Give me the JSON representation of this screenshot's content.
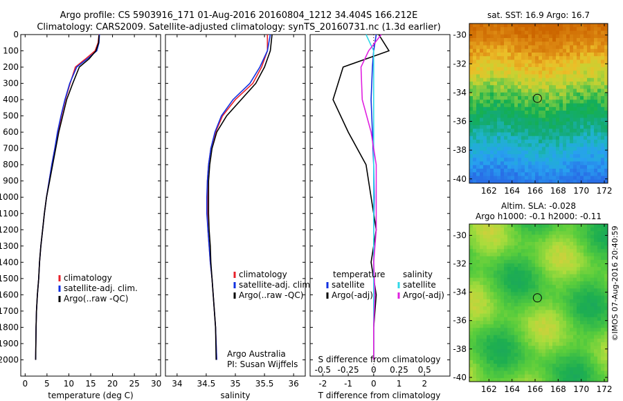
{
  "header": {
    "title_line1": "Argo profile: CS 5903916_171 01-Aug-2016 20160804_1212 34.404S 166.212E",
    "title_line2": "Climatology: CARS2009. Satellite-adjusted climatology: synTS_20160731.nc (1.3d earlier)"
  },
  "colors": {
    "climatology": "#e8202a",
    "satellite": "#1030e0",
    "argo": "#000000",
    "sal_satellite": "#30d8e8",
    "sal_argo": "#e020e0"
  },
  "chart_data": [
    {
      "id": "temperature",
      "type": "line",
      "xlabel": "temperature (deg C)",
      "ylabel": "",
      "xlim": [
        -1,
        31
      ],
      "ylim": [
        2100,
        0
      ],
      "xticks": [
        0,
        5,
        10,
        15,
        20,
        25,
        30
      ],
      "yticks": [
        0,
        100,
        200,
        300,
        400,
        500,
        600,
        700,
        800,
        900,
        1000,
        1100,
        1200,
        1300,
        1400,
        1500,
        1600,
        1700,
        1800,
        1900,
        2000
      ],
      "legend": [
        "climatology",
        "satellite-adj. clim.",
        "Argo(..raw -QC)"
      ],
      "series": [
        {
          "name": "climatology",
          "color": "#e8202a",
          "x": [
            16.9,
            16.7,
            16.0,
            13.8,
            11.5,
            10.3,
            9.2,
            8.3,
            7.5,
            6.8,
            6.1,
            5.5,
            4.9,
            4.4,
            4.0,
            3.6,
            3.3,
            3.1,
            2.8,
            2.6,
            2.5,
            2.4
          ],
          "y": [
            0,
            50,
            100,
            150,
            200,
            300,
            400,
            500,
            600,
            700,
            800,
            900,
            1000,
            1100,
            1200,
            1300,
            1400,
            1500,
            1600,
            1700,
            1800,
            2000
          ]
        },
        {
          "name": "satellite-adj. clim.",
          "color": "#1030e0",
          "x": [
            17.0,
            16.9,
            16.4,
            14.2,
            11.8,
            10.2,
            9.1,
            8.2,
            7.4,
            6.8,
            6.1,
            5.5,
            4.9,
            4.4,
            4.0,
            3.6,
            3.3,
            3.1,
            2.8,
            2.6,
            2.5,
            2.4
          ],
          "y": [
            0,
            50,
            100,
            150,
            200,
            300,
            400,
            500,
            600,
            700,
            800,
            900,
            1000,
            1100,
            1200,
            1300,
            1400,
            1500,
            1600,
            1700,
            1800,
            2000
          ]
        },
        {
          "name": "Argo(..raw -QC)",
          "color": "#000000",
          "x": [
            16.9,
            16.8,
            16.2,
            14.6,
            12.4,
            10.9,
            9.5,
            8.6,
            7.7,
            7.0,
            6.3,
            5.6,
            4.9,
            4.4,
            4.0,
            3.6,
            3.3,
            3.1,
            2.8,
            2.6,
            2.5,
            2.4
          ],
          "y": [
            5,
            50,
            100,
            150,
            200,
            300,
            400,
            500,
            600,
            700,
            800,
            900,
            1000,
            1100,
            1200,
            1300,
            1400,
            1500,
            1600,
            1700,
            1800,
            2000
          ]
        }
      ]
    },
    {
      "id": "salinity",
      "type": "line",
      "xlabel": "salinity",
      "ylabel": "",
      "xlim": [
        33.8,
        36.2
      ],
      "ylim": [
        2100,
        0
      ],
      "xticks": [
        34,
        34.5,
        35,
        35.5,
        36
      ],
      "legend": [
        "climatology",
        "satellite-adj. clim.",
        "Argo(..raw -QC)"
      ],
      "series": [
        {
          "name": "climatology",
          "color": "#e8202a",
          "x": [
            35.55,
            35.55,
            35.45,
            35.3,
            35.0,
            34.78,
            34.66,
            34.58,
            34.54,
            34.52,
            34.52,
            34.52,
            34.53,
            34.55,
            34.57,
            34.6,
            34.62,
            34.64,
            34.66,
            34.68
          ],
          "y": [
            0,
            100,
            200,
            300,
            400,
            500,
            600,
            700,
            800,
            900,
            1000,
            1100,
            1200,
            1300,
            1400,
            1500,
            1600,
            1700,
            1800,
            2000
          ]
        },
        {
          "name": "satellite-adj. clim.",
          "color": "#1030e0",
          "x": [
            35.6,
            35.55,
            35.42,
            35.25,
            34.96,
            34.76,
            34.65,
            34.58,
            34.54,
            34.52,
            34.51,
            34.51,
            34.53,
            34.55,
            34.57,
            34.6,
            34.62,
            34.64,
            34.66,
            34.68
          ],
          "y": [
            0,
            100,
            200,
            300,
            400,
            500,
            600,
            700,
            800,
            900,
            1000,
            1100,
            1200,
            1300,
            1400,
            1500,
            1600,
            1700,
            1800,
            2000
          ]
        },
        {
          "name": "Argo(..raw -QC)",
          "color": "#000000",
          "x": [
            35.63,
            35.6,
            35.5,
            35.35,
            35.1,
            34.85,
            34.68,
            34.6,
            34.56,
            34.54,
            34.54,
            34.54,
            34.55,
            34.57,
            34.58,
            34.6,
            34.62,
            34.64,
            34.66,
            34.67
          ],
          "y": [
            0,
            100,
            200,
            300,
            400,
            500,
            600,
            700,
            800,
            900,
            1000,
            1100,
            1200,
            1300,
            1400,
            1500,
            1600,
            1700,
            1800,
            2000
          ]
        }
      ]
    },
    {
      "id": "difference",
      "type": "line",
      "xlabel": "T difference from climatology",
      "x2label": "S difference from climatology",
      "xlim": [
        -2.5,
        3
      ],
      "ylim": [
        2100,
        0
      ],
      "xticks": [
        -2,
        -1,
        0,
        1,
        2
      ],
      "x2ticks": [
        "-0.5",
        "-0.25",
        "0",
        "0.25",
        "0.5"
      ],
      "legend": {
        "temperature": "temperature",
        "salinity": "salinity",
        "items": [
          "satellite",
          "Argo(-adj)",
          "satellite",
          "Argo(-adj)"
        ]
      },
      "series": [
        {
          "name": "T satellite",
          "color": "#1030e0",
          "x": [
            0.1,
            0.0,
            -0.05,
            -0.1,
            -0.05,
            0,
            0.02,
            0.0,
            0.0,
            0.0,
            0.0,
            0.0
          ],
          "y": [
            0,
            100,
            200,
            400,
            600,
            800,
            1000,
            1200,
            1400,
            1600,
            1800,
            2000
          ]
        },
        {
          "name": "T Argo(-adj)",
          "color": "#000000",
          "x": [
            0.2,
            0.6,
            -1.2,
            -1.6,
            -1.0,
            -0.3,
            -0.1,
            0.1,
            -0.1,
            0.1,
            0.0,
            0.0
          ],
          "y": [
            0,
            100,
            200,
            400,
            600,
            800,
            1000,
            1200,
            1400,
            1600,
            1800,
            2000
          ]
        },
        {
          "name": "S satellite",
          "color": "#30d8e8",
          "x": [
            -0.3,
            0.0,
            0.0,
            0.0,
            0.0,
            0.0,
            0.0,
            0.0,
            0.0,
            0.0,
            0.0,
            0.0
          ],
          "y": [
            0,
            100,
            200,
            400,
            600,
            800,
            1000,
            1200,
            1400,
            1600,
            1800,
            2000
          ]
        },
        {
          "name": "S Argo(-adj)",
          "color": "#e020e0",
          "x": [
            0.3,
            -0.2,
            -0.5,
            -0.45,
            -0.1,
            0.1,
            0.1,
            0.1,
            0.0,
            0.05,
            0.0,
            0.0
          ],
          "y": [
            0,
            100,
            200,
            400,
            600,
            800,
            1000,
            1200,
            1400,
            1600,
            1800,
            2000
          ]
        }
      ]
    },
    {
      "id": "sst_map",
      "type": "heatmap",
      "title": "sat. SST: 16.9 Argo: 16.7",
      "xticks": [
        162,
        164,
        166,
        168,
        170,
        172
      ],
      "yticks": [
        -30,
        -32,
        -34,
        -36,
        -38,
        -40
      ],
      "marker": {
        "lon": 166.2,
        "lat": -34.4
      }
    },
    {
      "id": "sla_map",
      "type": "heatmap",
      "title_line1": "Altim. SLA: -0.028",
      "title_line2": "Argo h1000: -0.1 h2000: -0.11",
      "xticks": [
        162,
        164,
        166,
        168,
        170,
        172
      ],
      "yticks": [
        -30,
        -32,
        -34,
        -36,
        -38,
        -40
      ],
      "marker": {
        "lon": 166.2,
        "lat": -34.4
      }
    }
  ],
  "annotations": {
    "institution": "Argo Australia",
    "pi": "PI: Susan Wijffels",
    "credit": "©IMOS 07-Aug-2016 20:40:59"
  }
}
